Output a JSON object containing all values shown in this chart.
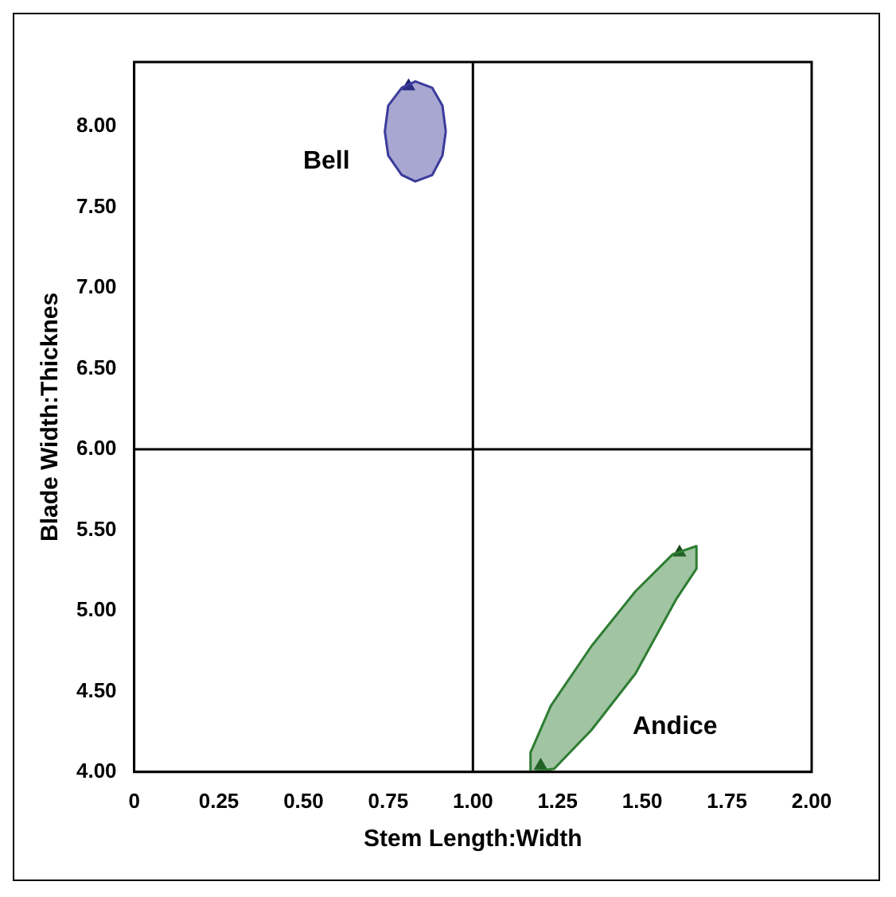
{
  "chart_data": {
    "type": "scatter",
    "xlabel": "Stem Length:Width",
    "ylabel": "Blade Width:Thicknes",
    "xlim": [
      0,
      2
    ],
    "xticks": [
      0,
      0.25,
      {
        "value": 0.5,
        "label": "0.50"
      },
      0.75,
      {
        "value": 1,
        "label": "1.00"
      },
      1.25,
      {
        "value": 1.5,
        "label": "1.50"
      },
      1.75,
      {
        "value": 2,
        "label": "2.00"
      }
    ],
    "ylim": [
      4,
      8.4
    ],
    "yticks": [
      {
        "value": 4,
        "label": "4.00"
      },
      {
        "value": 4.5,
        "label": "4.50"
      },
      {
        "value": 5,
        "label": "5.00"
      },
      {
        "value": 5.5,
        "label": "5.50"
      },
      {
        "value": 6,
        "label": "6.00"
      },
      {
        "value": 6.5,
        "label": "6.50"
      },
      {
        "value": 7,
        "label": "7.00"
      },
      {
        "value": 7.5,
        "label": "7.50"
      },
      {
        "value": 8,
        "label": "8.00"
      }
    ],
    "grid": false,
    "legend": false,
    "marker": "triangle",
    "ref_lines": [
      {
        "axis": "x",
        "value": 1,
        "color": "#000000"
      },
      {
        "axis": "y",
        "value": 6,
        "color": "#000000"
      }
    ],
    "series": [
      {
        "type": "area",
        "name": "Bell",
        "marker": "none",
        "color": "#3b3b9c",
        "x": [
          0.92,
          0.91,
          0.88,
          0.83,
          0.79,
          0.75,
          0.74,
          0.75,
          0.79,
          0.83,
          0.88,
          0.91,
          0.92
        ],
        "values": [
          7.97,
          8.13,
          8.24,
          8.28,
          8.24,
          8.13,
          7.97,
          7.82,
          7.7,
          7.66,
          7.7,
          7.82,
          7.97
        ]
      },
      {
        "type": "area",
        "name": "Andice",
        "marker": "none",
        "color": "#2e7d32",
        "x": [
          1.66,
          1.66,
          1.6,
          1.48,
          1.35,
          1.24,
          1.17,
          1.17,
          1.23,
          1.35,
          1.48,
          1.59,
          1.66
        ],
        "values": [
          5.4,
          5.26,
          5.07,
          4.61,
          4.26,
          4.02,
          4,
          4.12,
          4.41,
          4.78,
          5.12,
          5.35,
          5.4
        ]
      },
      {
        "color": "#1f1f6e",
        "x": [
          0.81
        ],
        "values": [
          8.25
        ]
      },
      {
        "color": "#1b4d1e",
        "x": [
          1.2,
          1.61
        ],
        "values": [
          4.04,
          5.36
        ]
      }
    ]
  }
}
